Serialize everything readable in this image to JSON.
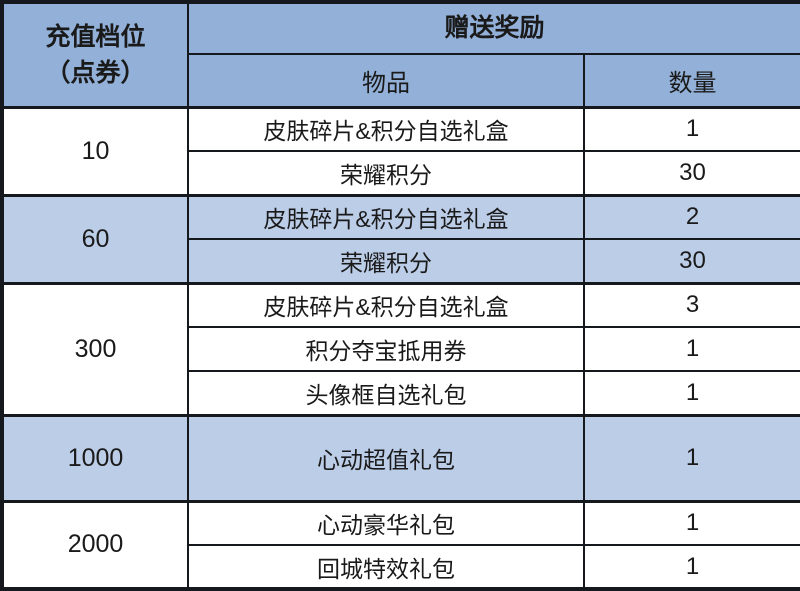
{
  "table": {
    "header": {
      "tier_label_line1": "充值档位",
      "tier_label_line2": "（点券）",
      "reward_label": "赠送奖励",
      "item_label": "物品",
      "qty_label": "数量"
    },
    "groups": [
      {
        "tier": "10",
        "shade": false,
        "tall": false,
        "rewards": [
          {
            "item": "皮肤碎片&积分自选礼盒",
            "qty": "1"
          },
          {
            "item": "荣耀积分",
            "qty": "30"
          }
        ]
      },
      {
        "tier": "60",
        "shade": true,
        "tall": false,
        "rewards": [
          {
            "item": "皮肤碎片&积分自选礼盒",
            "qty": "2"
          },
          {
            "item": "荣耀积分",
            "qty": "30"
          }
        ]
      },
      {
        "tier": "300",
        "shade": false,
        "tall": false,
        "rewards": [
          {
            "item": "皮肤碎片&积分自选礼盒",
            "qty": "3"
          },
          {
            "item": "积分夺宝抵用券",
            "qty": "1"
          },
          {
            "item": "头像框自选礼包",
            "qty": "1"
          }
        ]
      },
      {
        "tier": "1000",
        "shade": true,
        "tall": true,
        "rewards": [
          {
            "item": "心动超值礼包",
            "qty": "1"
          }
        ]
      },
      {
        "tier": "2000",
        "shade": false,
        "tall": false,
        "rewards": [
          {
            "item": "心动豪华礼包",
            "qty": "1"
          },
          {
            "item": "回城特效礼包",
            "qty": "1"
          }
        ]
      }
    ],
    "colors": {
      "header_bg": "#92b0d8",
      "shade_bg": "#bccde8",
      "border": "#15181c",
      "text": "#1a1a1a"
    }
  }
}
